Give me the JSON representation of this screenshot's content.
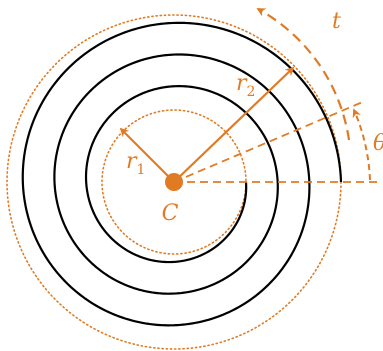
{
  "colors": {
    "accent": "#e07b24",
    "spiral": "#000000",
    "background": "#ffffff"
  },
  "labels": {
    "center": "C",
    "r1_letter": "r",
    "r1_sub": "1",
    "r2_letter": "r",
    "r2_sub": "2",
    "t": "t",
    "theta": "θ"
  }
}
